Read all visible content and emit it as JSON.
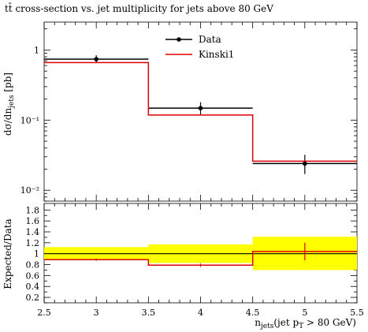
{
  "chart_data": {
    "type": "line",
    "title": "tt̄ cross-section vs. jet multiplicity for jets above 80 GeV",
    "xlabel": "njets(jet pT > 80 GeV)",
    "xlabel_parts": {
      "main": "n",
      "sub": "jets",
      "rest_open": "(jet p",
      "sub2": "T",
      "rest_close": " > 80 GeV)"
    },
    "ylabel": "dσ/dnjets [pb]",
    "ylabel_parts": {
      "main": "dσ/dn",
      "sub": "jets",
      "rest": " [pb]"
    },
    "ratio_ylabel": "Expected/Data",
    "xlim": [
      2.5,
      5.5
    ],
    "xticks": [
      {
        "v": 2.5,
        "label": "2.5"
      },
      {
        "v": 3,
        "label": "3"
      },
      {
        "v": 3.5,
        "label": "3.5"
      },
      {
        "v": 4,
        "label": "4"
      },
      {
        "v": 4.5,
        "label": "4.5"
      },
      {
        "v": 5,
        "label": "5"
      },
      {
        "v": 5.5,
        "label": "5.5"
      }
    ],
    "yscale": "log",
    "ylim": [
      0.007,
      2.5
    ],
    "yticks": [
      {
        "v": 1,
        "label": "1"
      },
      {
        "v": 0.1,
        "label": "10⁻¹"
      },
      {
        "v": 0.01,
        "label": "10⁻²"
      }
    ],
    "ratio_ylim": [
      0.1,
      1.92
    ],
    "ratio_yticks": [
      0.2,
      0.4,
      0.6,
      0.8,
      1,
      1.2,
      1.4,
      1.6,
      1.8
    ],
    "ratio_ytick_labels": [
      "0.2",
      "0.4",
      "0.6",
      "0.8",
      "1",
      "1.2",
      "1.4",
      "1.6",
      "1.8"
    ],
    "bins": [
      {
        "lo": 2.5,
        "hi": 3.5,
        "data": 0.74,
        "data_err_lo": 0.65,
        "data_err_hi": 0.84,
        "mc": 0.66,
        "ratio": 0.89,
        "band_lo": 0.88,
        "band_hi": 1.12,
        "ratio_err_lo": 0.87,
        "ratio_err_hi": 0.91
      },
      {
        "lo": 3.5,
        "hi": 4.5,
        "data": 0.148,
        "data_err_lo": 0.12,
        "data_err_hi": 0.18,
        "mc": 0.118,
        "ratio": 0.79,
        "band_lo": 0.83,
        "band_hi": 1.17,
        "ratio_err_lo": 0.76,
        "ratio_err_hi": 0.82
      },
      {
        "lo": 4.5,
        "hi": 5.5,
        "data": 0.024,
        "data_err_lo": 0.017,
        "data_err_hi": 0.032,
        "mc": 0.026,
        "ratio": 1.04,
        "band_lo": 0.7,
        "band_hi": 1.31,
        "ratio_err_lo": 0.88,
        "ratio_err_hi": 1.2
      }
    ],
    "series": [
      {
        "name": "Data",
        "color": "#000000"
      },
      {
        "name": "Kinski1",
        "color": "#dd0000"
      }
    ],
    "band_color": "#ffff00",
    "legend_position": "top-center"
  }
}
